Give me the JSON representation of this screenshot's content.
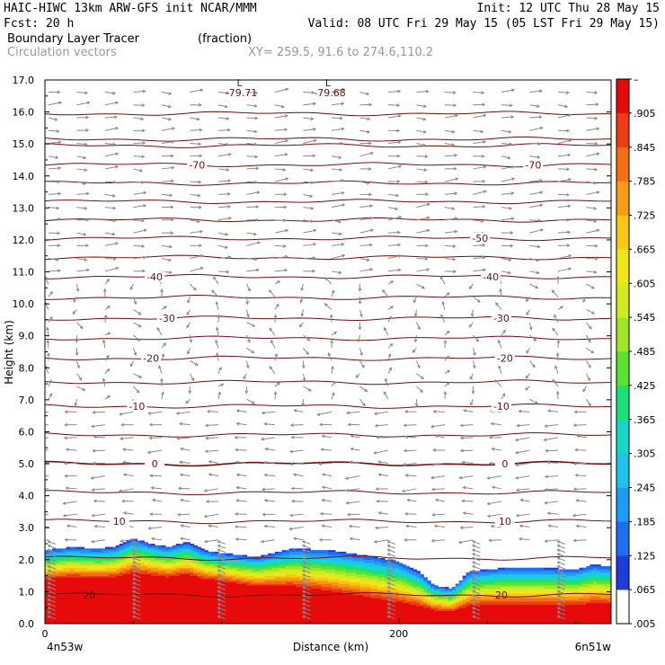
{
  "header": {
    "left_line1": "HAIC-HIWC 13km ARW-GFS init   NCAR/MMM",
    "right_line1": "Init: 12 UTC Thu 28 May 15",
    "left_line2": "Fcst:   20 h",
    "right_line2": "Valid: 08 UTC Fri 29 May 15 (05 LST Fri 29 May 15)",
    "field1_name": "Boundary Layer Tracer",
    "field1_units": "(fraction)",
    "field2_name": "Circulation vectors",
    "cross_section": "XY= 259.5, 91.6 to 274.6,110.2"
  },
  "colors": {
    "contour": "#7a0a0a",
    "vector": "#8a8a8a",
    "palette": [
      "#ffffff",
      "#1e3cdc",
      "#1e6ef0",
      "#1e9bf5",
      "#1ec3f0",
      "#14d7c8",
      "#19e178",
      "#5ae132",
      "#a0e628",
      "#d2eb1e",
      "#f0e619",
      "#fac814",
      "#fa9b14",
      "#f56e14",
      "#f03c14",
      "#e60a0a"
    ]
  },
  "chart_data": {
    "type": "heatmap",
    "subtype": "vertical cross-section with temperature contours and circulation vectors",
    "xlabel": "Distance (km)",
    "ylabel": "Height (km)",
    "xlim": [
      0,
      320
    ],
    "ylim": [
      0,
      17
    ],
    "x_ticks": [
      0,
      200
    ],
    "x_tick_labels": [
      "0",
      "200"
    ],
    "x_endpoint_labels": [
      "4n53w",
      "6n51w"
    ],
    "y_ticks": [
      0,
      1,
      2,
      3,
      4,
      5,
      6,
      7,
      8,
      9,
      10,
      11,
      12,
      13,
      14,
      15,
      16,
      17
    ],
    "y_tick_labels": [
      "0.0",
      "1.0",
      "2.0",
      "3.0",
      "4.0",
      "5.0",
      "6.0",
      "7.0",
      "8.0",
      "9.0",
      "10.0",
      "11.0",
      "12.0",
      "13.0",
      "14.0",
      "15.0",
      "16.0",
      "17.0"
    ],
    "colorbar": {
      "labels": [
        "–",
        ".905",
        ".845",
        ".785",
        ".725",
        ".665",
        ".605",
        ".545",
        ".485",
        ".425",
        ".365",
        ".305",
        ".245",
        ".185",
        ".125",
        ".065",
        ".005"
      ],
      "min": 0.005,
      "max": 0.965,
      "step": 0.06
    },
    "tracer_top_profile": {
      "x": [
        0,
        15,
        30,
        40,
        50,
        60,
        70,
        80,
        90,
        100,
        120,
        140,
        160,
        180,
        200,
        212,
        220,
        230,
        240,
        260,
        280,
        300,
        310,
        320
      ],
      "top": [
        2.3,
        2.4,
        2.35,
        2.4,
        2.65,
        2.5,
        2.4,
        2.55,
        2.3,
        2.2,
        2.1,
        2.35,
        2.3,
        2.15,
        1.95,
        1.6,
        1.2,
        1.1,
        1.65,
        1.75,
        1.75,
        1.7,
        1.85,
        1.8
      ]
    },
    "temperature_contours": [
      {
        "level": 20,
        "height": 0.9
      },
      {
        "level": 10,
        "height": 3.2
      },
      {
        "level": 0,
        "height": 5.0
      },
      {
        "level": -10,
        "height": 6.8
      },
      {
        "level": -20,
        "height": 8.3
      },
      {
        "level": -30,
        "height": 9.55
      },
      {
        "level": -40,
        "height": 10.85
      },
      {
        "level": -50,
        "height": 12.05
      },
      {
        "level": -70,
        "height": 14.35
      }
    ],
    "contour_labels": [
      {
        "text": "20",
        "x": 25,
        "y": 0.9
      },
      {
        "text": "20",
        "x": 258,
        "y": 0.9
      },
      {
        "text": "10",
        "x": 42,
        "y": 3.2
      },
      {
        "text": "10",
        "x": 260,
        "y": 3.2
      },
      {
        "text": "0",
        "x": 62,
        "y": 5.0
      },
      {
        "text": "0",
        "x": 260,
        "y": 5.0
      },
      {
        "text": "-10",
        "x": 52,
        "y": 6.8
      },
      {
        "text": "-10",
        "x": 258,
        "y": 6.8
      },
      {
        "text": "-20",
        "x": 60,
        "y": 8.3
      },
      {
        "text": "-20",
        "x": 260,
        "y": 8.3
      },
      {
        "text": "-30",
        "x": 69,
        "y": 9.55
      },
      {
        "text": "-30",
        "x": 258,
        "y": 9.55
      },
      {
        "text": "-40",
        "x": 62,
        "y": 10.85
      },
      {
        "text": "-40",
        "x": 252,
        "y": 10.85
      },
      {
        "text": "-50",
        "x": 246,
        "y": 12.05
      },
      {
        "text": "-70",
        "x": 86,
        "y": 14.35
      },
      {
        "text": "-70",
        "x": 276,
        "y": 14.35
      }
    ],
    "lows": [
      {
        "text": "L",
        "value": "-79.71",
        "x": 110,
        "y": 16.8
      },
      {
        "text": "L",
        "value": "-79.68",
        "x": 160,
        "y": 16.8
      }
    ]
  }
}
